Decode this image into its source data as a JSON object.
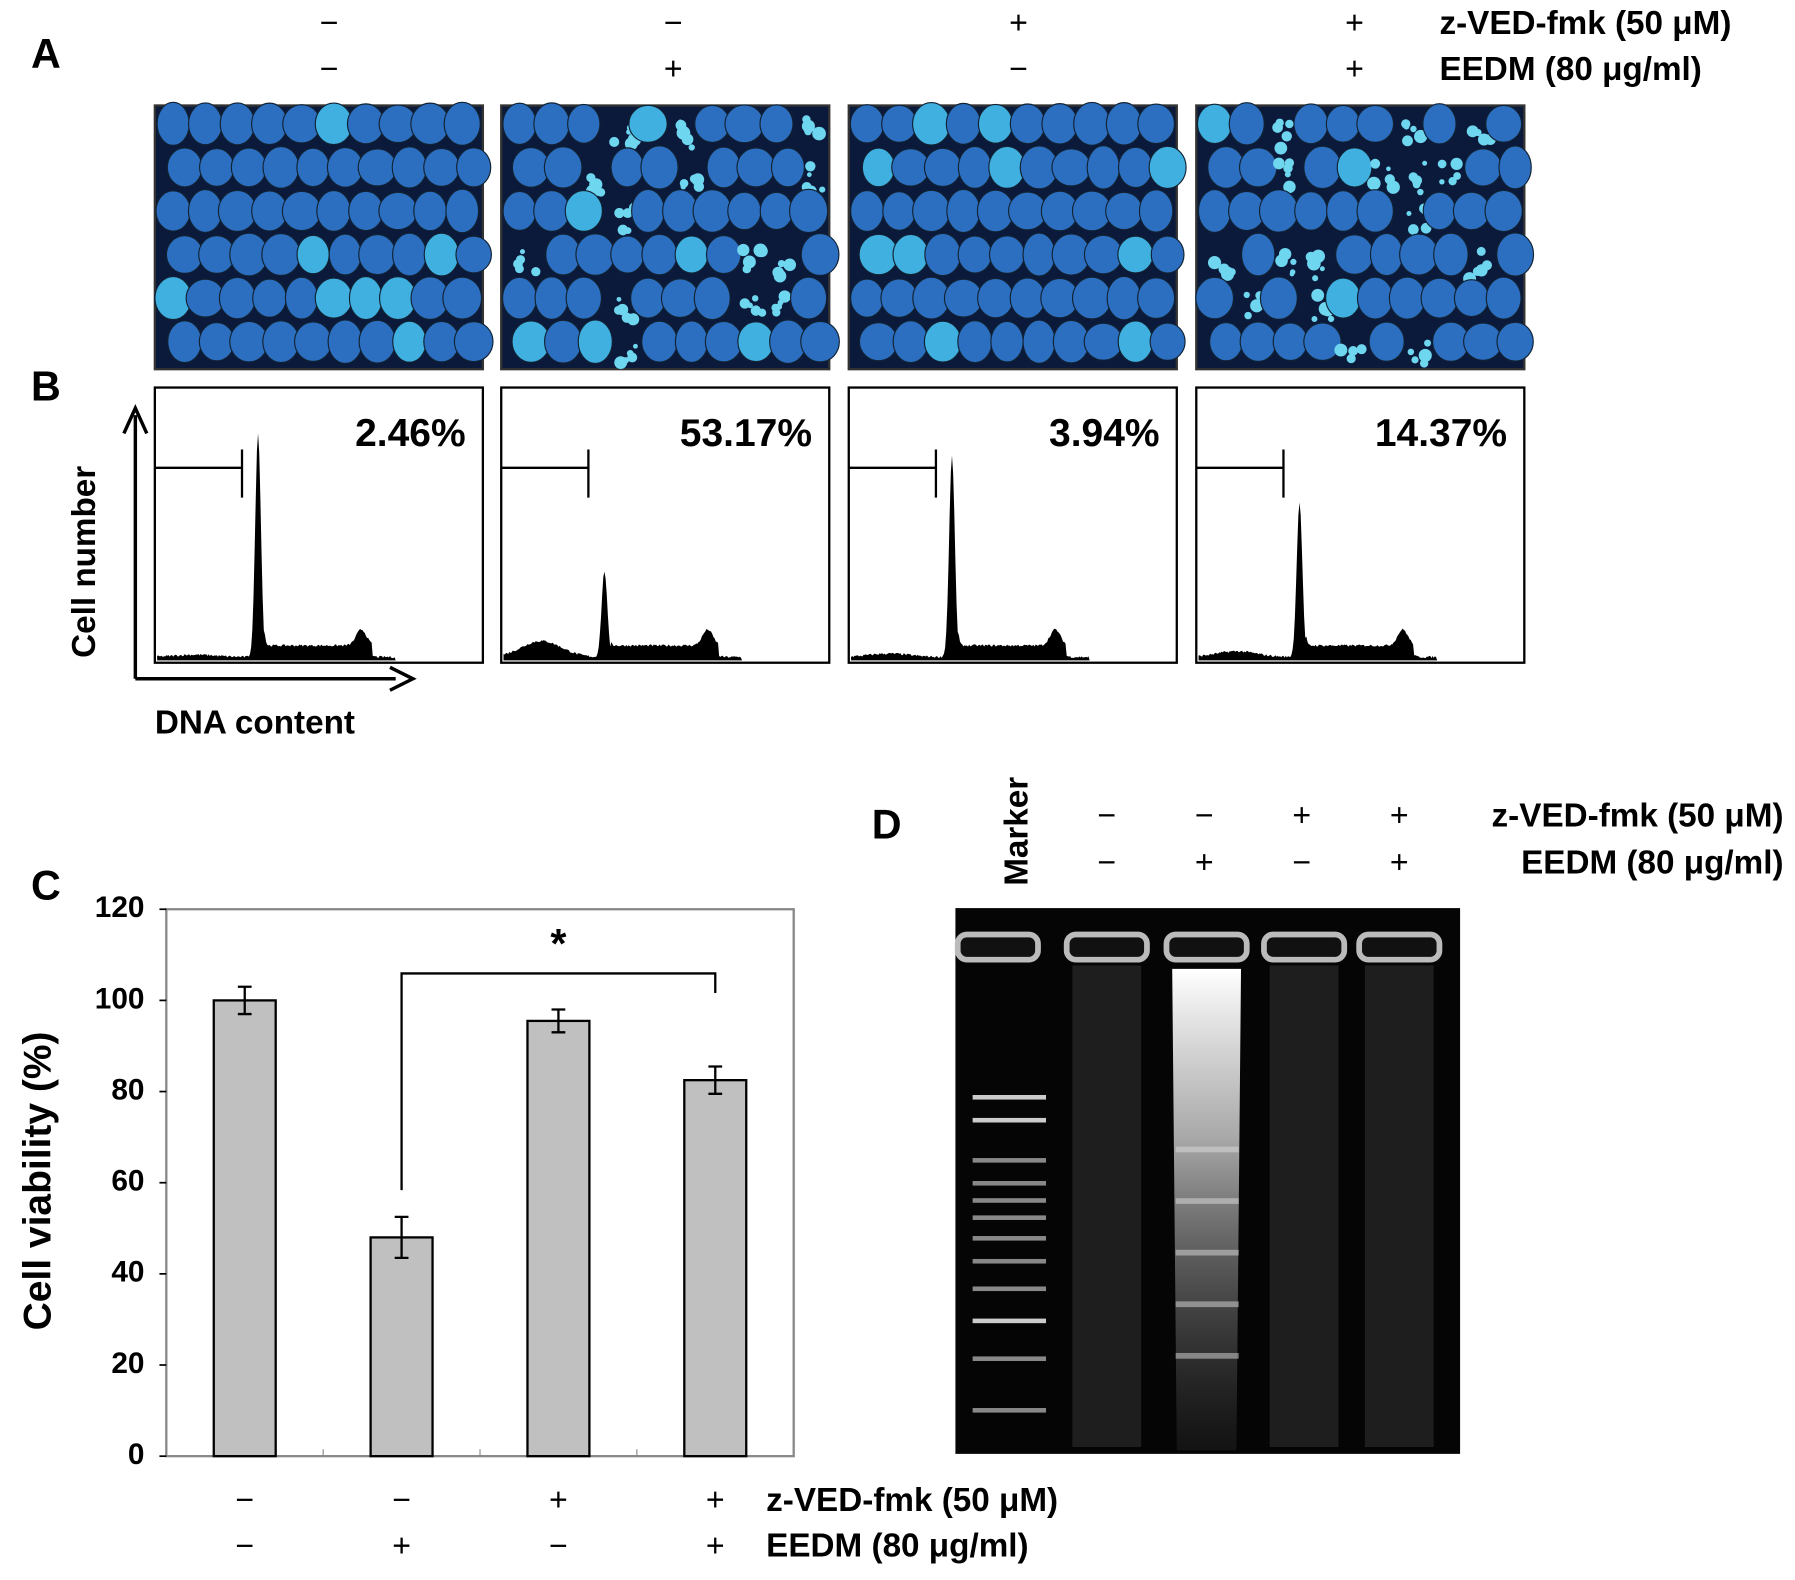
{
  "panel_labels": [
    "A",
    "B",
    "C",
    "D"
  ],
  "treatment_labels": {
    "z_ved_fmk": "z-VED-fmk (50 μM)",
    "eedm": "EEDM (80 μg/ml)"
  },
  "signs": {
    "z_ved_fmk": [
      "−",
      "−",
      "+",
      "+"
    ],
    "eedm": [
      "−",
      "+",
      "−",
      "+"
    ]
  },
  "panel_b": {
    "percentages": [
      "2.46%",
      "53.17%",
      "3.94%",
      "14.37%"
    ],
    "y_label": "Cell number",
    "x_label": "DNA content"
  },
  "panel_d": {
    "marker_label": "Marker"
  },
  "chart_data": {
    "type": "bar",
    "y_label": "Cell viability (%)",
    "values": [
      100,
      48,
      95.5,
      82.5
    ],
    "errors": [
      3,
      4.5,
      2.5,
      3
    ],
    "color": "#c0c0c0",
    "ylim": [
      0,
      120
    ],
    "yticks": [
      0,
      20,
      40,
      60,
      80,
      100,
      120
    ],
    "grid": false,
    "annotation": "*"
  }
}
